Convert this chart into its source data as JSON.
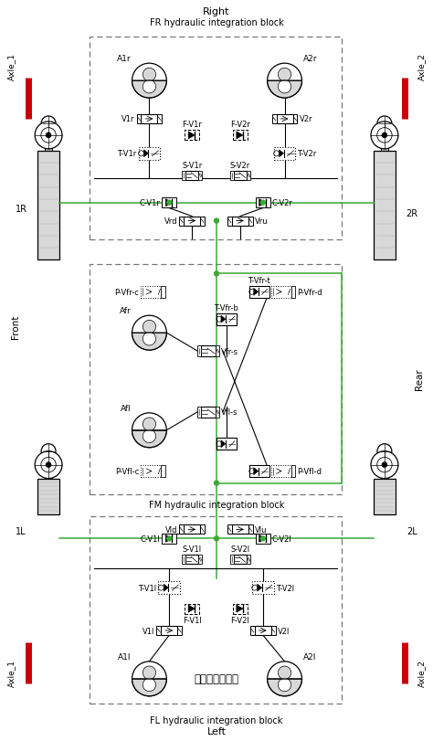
{
  "title_top": "Right",
  "subtitle_top": "FR hydraulic integration block",
  "title_bottom": "Left",
  "subtitle_bottom": "FL hydraulic integration block",
  "label_front": "Front",
  "label_rear": "Rear",
  "label_axle1_top": "Axle_1",
  "label_axle2_top": "Axle_2",
  "label_axle1_bot": "Axle_1",
  "label_axle2_bot": "Axle_2",
  "label_1R": "1R",
  "label_2R": "2R",
  "label_1L": "1L",
  "label_2L": "2L",
  "label_fm": "FM hydraulic integration block",
  "chinese_text": "前左液压集成块",
  "bg_color": "#ffffff",
  "line_color": "#000000",
  "green_color": "#3aaa35",
  "red_color": "#cc0000",
  "gray_light": "#d8d8d8",
  "gray_med": "#b0b0b0"
}
